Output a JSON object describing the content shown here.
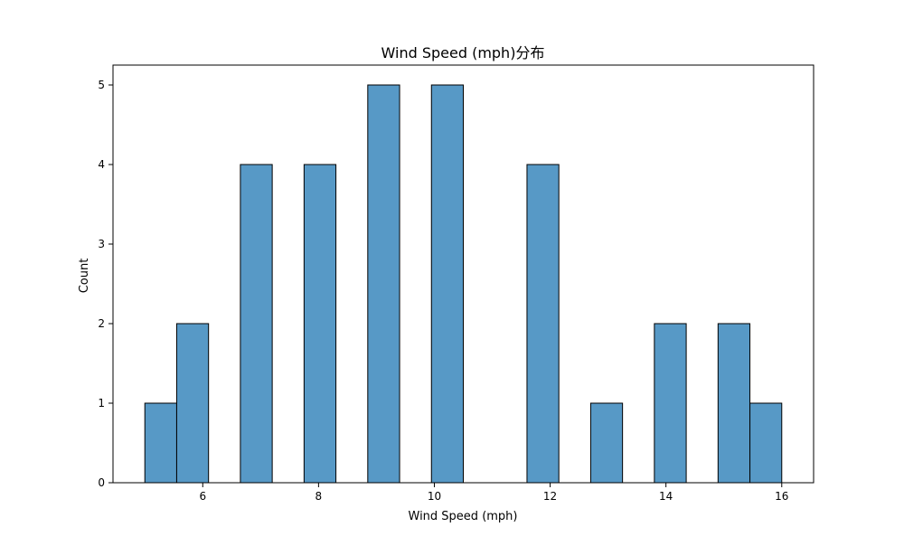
{
  "chart_data": {
    "type": "bar",
    "title": "Wind Speed (mph)分布",
    "xlabel": "Wind Speed (mph)",
    "ylabel": "Count",
    "bin_width": 0.55,
    "bins": [
      {
        "start": 5.0,
        "count": 1
      },
      {
        "start": 5.55,
        "count": 2
      },
      {
        "start": 6.1,
        "count": 0
      },
      {
        "start": 6.65,
        "count": 4
      },
      {
        "start": 7.2,
        "count": 0
      },
      {
        "start": 7.75,
        "count": 4
      },
      {
        "start": 8.3,
        "count": 0
      },
      {
        "start": 8.85,
        "count": 5
      },
      {
        "start": 9.4,
        "count": 0
      },
      {
        "start": 9.95,
        "count": 5
      },
      {
        "start": 10.5,
        "count": 0
      },
      {
        "start": 11.05,
        "count": 0
      },
      {
        "start": 11.6,
        "count": 4
      },
      {
        "start": 12.15,
        "count": 0
      },
      {
        "start": 12.7,
        "count": 1
      },
      {
        "start": 13.25,
        "count": 0
      },
      {
        "start": 13.8,
        "count": 2
      },
      {
        "start": 14.35,
        "count": 0
      },
      {
        "start": 14.9,
        "count": 2
      },
      {
        "start": 15.45,
        "count": 1
      }
    ],
    "xlim": [
      4.45,
      16.55
    ],
    "ylim": [
      0,
      5.25
    ],
    "xticks": [
      6,
      8,
      10,
      12,
      14,
      16
    ],
    "yticks": [
      0,
      1,
      2,
      3,
      4,
      5
    ],
    "grid": false,
    "bar_color": "#5799c6",
    "edge_color": "#000000"
  }
}
